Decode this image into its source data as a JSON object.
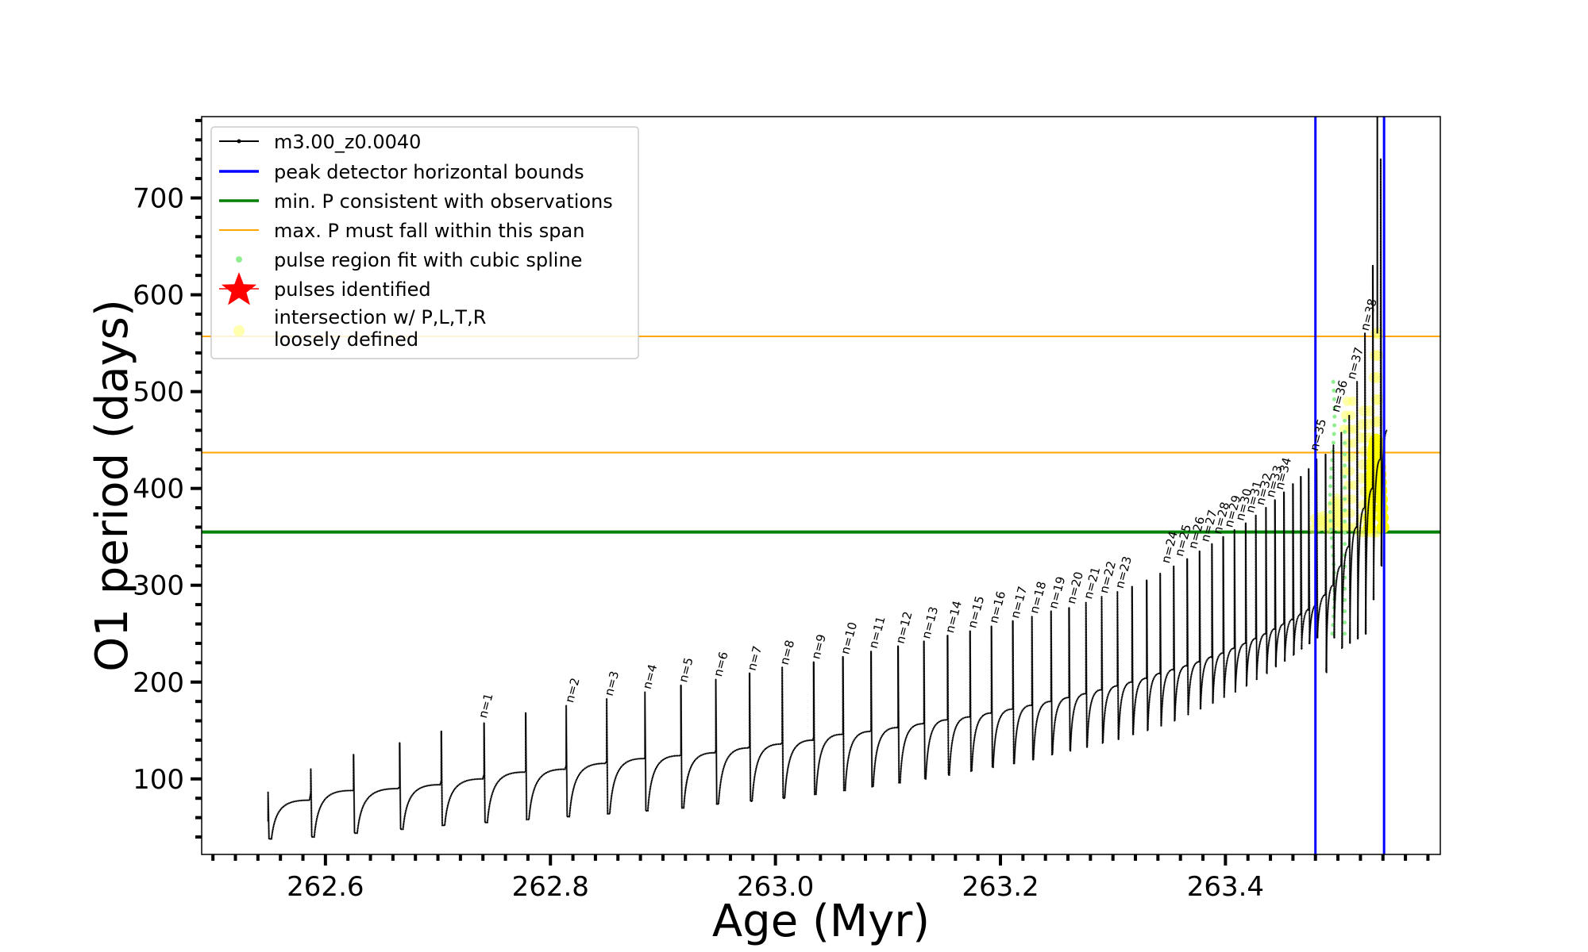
{
  "chart_data": {
    "type": "line",
    "title": "",
    "xlabel": "Age (Myr)",
    "ylabel": "O1 period (days)",
    "xlim": [
      262.49,
      263.591
    ],
    "ylim": [
      22,
      784
    ],
    "xticks": [
      262.6,
      262.8,
      263.0,
      263.2,
      263.4
    ],
    "xtick_labels": [
      "262.6",
      "262.8",
      "263.0",
      "263.2",
      "263.4"
    ],
    "yticks": [
      100,
      200,
      300,
      400,
      500,
      600,
      700
    ],
    "ytick_labels": [
      "100",
      "200",
      "300",
      "400",
      "500",
      "600",
      "700"
    ],
    "grid": false,
    "legend_position": "top-left",
    "series": [
      {
        "name": "m3.00_z0.0040",
        "color": "#000000",
        "style": "line-with-small-points",
        "start_age": 262.549,
        "start_period": 56,
        "pulse_ages": [
          262.549,
          262.587,
          262.625,
          262.666,
          262.703,
          262.741,
          262.778,
          262.814,
          262.85,
          262.884,
          262.916,
          262.947,
          262.977,
          263.006,
          263.034,
          263.06,
          263.085,
          263.109,
          263.132,
          263.153,
          263.173,
          263.192,
          263.211,
          263.228,
          263.245,
          263.261,
          263.276,
          263.29,
          263.304,
          263.317,
          263.33,
          263.342,
          263.354,
          263.366,
          263.377,
          263.388,
          263.398,
          263.408,
          263.418,
          263.427,
          263.436,
          263.444,
          263.452,
          263.46,
          263.467,
          263.474,
          263.481,
          263.489,
          263.496,
          263.503,
          263.51,
          263.517,
          263.524,
          263.531,
          263.538
        ],
        "pulse_peaks": [
          86,
          110,
          125,
          137,
          149,
          158,
          168,
          176,
          183,
          190,
          197,
          203,
          209,
          215,
          221,
          226,
          232,
          237,
          242,
          248,
          253,
          258,
          263,
          268,
          273,
          277,
          282,
          288,
          293,
          299,
          305,
          312,
          320,
          327,
          335,
          343,
          350,
          357,
          364,
          372,
          380,
          388,
          396,
          405,
          412,
          420,
          430,
          435,
          445,
          458,
          475,
          510,
          560,
          630,
          740
        ],
        "pulse_minima": [
          38,
          40,
          44,
          48,
          52,
          55,
          58,
          61,
          64,
          67,
          70,
          74,
          77,
          80,
          84,
          88,
          92,
          96,
          100,
          104,
          108,
          112,
          116,
          120,
          125,
          129,
          133,
          137,
          141,
          146,
          150,
          155,
          160,
          166,
          172,
          178,
          184,
          190,
          196,
          203,
          209,
          216,
          222,
          228,
          234,
          240,
          246,
          210,
          246,
          235,
          240,
          245,
          250,
          285,
          320
        ],
        "interpulse_plateaus": [
          78,
          88,
          90,
          94,
          100,
          107,
          110,
          116,
          121,
          124,
          127,
          132,
          136,
          140,
          146,
          149,
          153,
          157,
          161,
          164,
          168,
          172,
          176,
          180,
          184,
          188,
          192,
          196,
          200,
          204,
          209,
          213,
          217,
          221,
          226,
          230,
          235,
          240,
          245,
          250,
          255,
          260,
          265,
          270,
          275,
          280,
          290,
          300,
          320,
          340,
          360,
          380,
          400,
          430,
          460
        ]
      },
      {
        "name": "peak detector horizontal bounds",
        "color": "#0000ff",
        "type": "vline",
        "x": [
          263.48,
          263.541
        ]
      },
      {
        "name": "min. P consistent with observations",
        "color": "#008000",
        "type": "hline",
        "y": [
          355
        ]
      },
      {
        "name": "max. P must fall within this span",
        "color": "#ffa500",
        "type": "hline",
        "y": [
          437,
          557
        ]
      },
      {
        "name": "pulse region fit with cubic spline",
        "color": "#90ee90",
        "type": "scatter"
      },
      {
        "name": "pulses identified",
        "color": "#ff0000",
        "type": "star-marker"
      },
      {
        "name": "intersection w/ P,L,T,R\nloosely defined",
        "color": "#ffff00",
        "type": "scatter"
      }
    ],
    "black_vline_x": 263.535,
    "pulse_labels": [
      {
        "text": "n=1",
        "x": 262.743,
        "y": 162
      },
      {
        "text": "n=2",
        "x": 262.82,
        "y": 178
      },
      {
        "text": "n=3",
        "x": 262.855,
        "y": 185
      },
      {
        "text": "n=4",
        "x": 262.889,
        "y": 192
      },
      {
        "text": "n=5",
        "x": 262.921,
        "y": 199
      },
      {
        "text": "n=6",
        "x": 262.952,
        "y": 205
      },
      {
        "text": "n=7",
        "x": 262.982,
        "y": 211
      },
      {
        "text": "n=8",
        "x": 263.011,
        "y": 217
      },
      {
        "text": "n=9",
        "x": 263.039,
        "y": 223
      },
      {
        "text": "n=10",
        "x": 263.065,
        "y": 228
      },
      {
        "text": "n=11",
        "x": 263.09,
        "y": 234
      },
      {
        "text": "n=12",
        "x": 263.114,
        "y": 239
      },
      {
        "text": "n=13",
        "x": 263.137,
        "y": 244
      },
      {
        "text": "n=14",
        "x": 263.158,
        "y": 250
      },
      {
        "text": "n=15",
        "x": 263.178,
        "y": 255
      },
      {
        "text": "n=16",
        "x": 263.197,
        "y": 260
      },
      {
        "text": "n=17",
        "x": 263.216,
        "y": 265
      },
      {
        "text": "n=18",
        "x": 263.233,
        "y": 270
      },
      {
        "text": "n=19",
        "x": 263.25,
        "y": 275
      },
      {
        "text": "n=20",
        "x": 263.266,
        "y": 280
      },
      {
        "text": "n=21",
        "x": 263.281,
        "y": 285
      },
      {
        "text": "n=22",
        "x": 263.295,
        "y": 291
      },
      {
        "text": "n=23",
        "x": 263.309,
        "y": 296
      },
      {
        "text": "n=24",
        "x": 263.35,
        "y": 322
      },
      {
        "text": "n=25",
        "x": 263.362,
        "y": 329
      },
      {
        "text": "n=26",
        "x": 263.374,
        "y": 337
      },
      {
        "text": "n=27",
        "x": 263.385,
        "y": 344
      },
      {
        "text": "n=28",
        "x": 263.396,
        "y": 352
      },
      {
        "text": "n=29",
        "x": 263.406,
        "y": 359
      },
      {
        "text": "n=30",
        "x": 263.416,
        "y": 366
      },
      {
        "text": "n=31",
        "x": 263.425,
        "y": 374
      },
      {
        "text": "n=32",
        "x": 263.434,
        "y": 382
      },
      {
        "text": "n=33",
        "x": 263.443,
        "y": 390
      },
      {
        "text": "n=34",
        "x": 263.451,
        "y": 398
      },
      {
        "text": "n=35",
        "x": 263.482,
        "y": 438
      },
      {
        "text": "n=36",
        "x": 263.501,
        "y": 478
      },
      {
        "text": "n=37",
        "x": 263.515,
        "y": 512
      },
      {
        "text": "n=38",
        "x": 263.527,
        "y": 562
      }
    ]
  }
}
